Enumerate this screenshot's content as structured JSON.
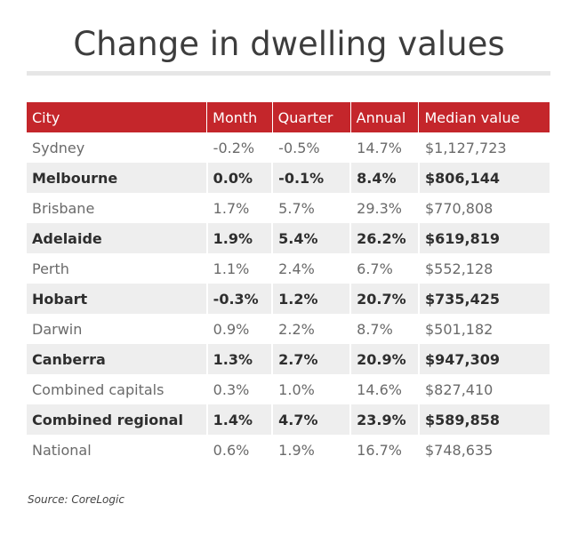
{
  "title": "Change in dwelling values",
  "table": {
    "headers": [
      "City",
      "Month",
      "Quarter",
      "Annual",
      "Median value"
    ],
    "rows": [
      [
        "Sydney",
        "-0.2%",
        "-0.5%",
        "14.7%",
        "$1,127,723"
      ],
      [
        "Melbourne",
        "0.0%",
        "-0.1%",
        "8.4%",
        "$806,144"
      ],
      [
        "Brisbane",
        "1.7%",
        "5.7%",
        "29.3%",
        "$770,808"
      ],
      [
        "Adelaide",
        "1.9%",
        "5.4%",
        "26.2%",
        "$619,819"
      ],
      [
        "Perth",
        "1.1%",
        "2.4%",
        "6.7%",
        "$552,128"
      ],
      [
        "Hobart",
        "-0.3%",
        "1.2%",
        "20.7%",
        "$735,425"
      ],
      [
        "Darwin",
        "0.9%",
        "2.2%",
        "8.7%",
        "$501,182"
      ],
      [
        "Canberra",
        "1.3%",
        "2.7%",
        "20.9%",
        "$947,309"
      ],
      [
        "Combined capitals",
        "0.3%",
        "1.0%",
        "14.6%",
        "$827,410"
      ],
      [
        "Combined regional",
        "1.4%",
        "4.7%",
        "23.9%",
        "$589,858"
      ],
      [
        "National",
        "0.6%",
        "1.9%",
        "16.7%",
        "$748,635"
      ]
    ]
  },
  "source": "Source: CoreLogic",
  "colors": {
    "header_bg": "#c4262b",
    "header_text": "#ffffff",
    "alt_row_bg": "#eeeeee",
    "title_text": "#3d3d3d"
  }
}
